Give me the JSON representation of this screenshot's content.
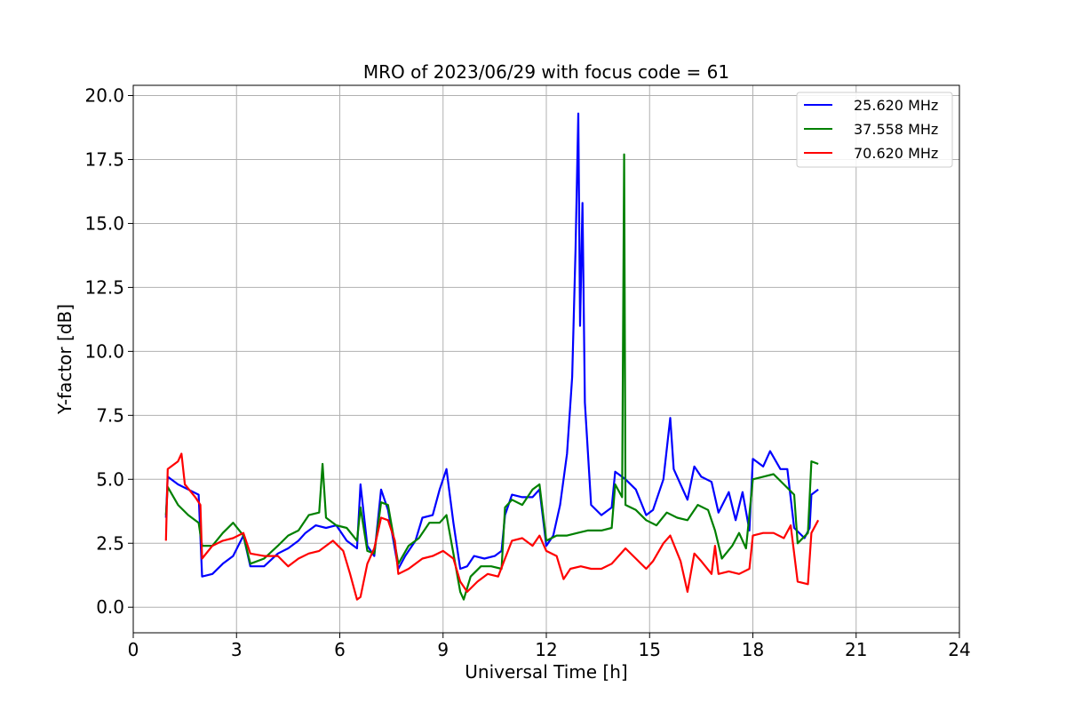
{
  "chart_data": {
    "type": "line",
    "title": "MRO of 2023/06/29 with focus code = 61",
    "xlabel": "Universal Time [h]",
    "ylabel": "Y-factor [dB]",
    "xlim": [
      0,
      24
    ],
    "ylim": [
      -1.0,
      20.4
    ],
    "xticks": [
      0,
      3,
      6,
      9,
      12,
      15,
      18,
      21,
      24
    ],
    "xtick_labels": [
      "0",
      "3",
      "6",
      "9",
      "12",
      "15",
      "18",
      "21",
      "24"
    ],
    "yticks": [
      0,
      2.5,
      5,
      7.5,
      10,
      12.5,
      15,
      17.5,
      20
    ],
    "ytick_labels": [
      "0.0",
      "2.5",
      "5.0",
      "7.5",
      "10.0",
      "12.5",
      "15.0",
      "17.5",
      "20.0"
    ],
    "grid": true,
    "legend_position": "top-right",
    "series": [
      {
        "name": "25.620 MHz",
        "color": "#0000ff",
        "points": [
          [
            0.95,
            3.5
          ],
          [
            1.0,
            5.1
          ],
          [
            1.3,
            4.8
          ],
          [
            1.6,
            4.6
          ],
          [
            1.9,
            4.4
          ],
          [
            2.0,
            1.2
          ],
          [
            2.3,
            1.3
          ],
          [
            2.6,
            1.7
          ],
          [
            2.9,
            2.0
          ],
          [
            3.2,
            2.8
          ],
          [
            3.4,
            1.6
          ],
          [
            3.8,
            1.6
          ],
          [
            4.2,
            2.1
          ],
          [
            4.5,
            2.3
          ],
          [
            4.8,
            2.6
          ],
          [
            5.0,
            2.9
          ],
          [
            5.3,
            3.2
          ],
          [
            5.6,
            3.1
          ],
          [
            5.9,
            3.2
          ],
          [
            6.2,
            2.6
          ],
          [
            6.5,
            2.3
          ],
          [
            6.6,
            4.8
          ],
          [
            6.8,
            2.4
          ],
          [
            7.0,
            2.0
          ],
          [
            7.2,
            4.6
          ],
          [
            7.4,
            3.8
          ],
          [
            7.7,
            1.5
          ],
          [
            7.9,
            2.0
          ],
          [
            8.2,
            2.6
          ],
          [
            8.4,
            3.5
          ],
          [
            8.7,
            3.6
          ],
          [
            8.9,
            4.6
          ],
          [
            9.1,
            5.4
          ],
          [
            9.3,
            3.3
          ],
          [
            9.5,
            1.5
          ],
          [
            9.7,
            1.6
          ],
          [
            9.9,
            2.0
          ],
          [
            10.2,
            1.9
          ],
          [
            10.5,
            2.0
          ],
          [
            10.7,
            2.2
          ],
          [
            10.8,
            3.6
          ],
          [
            11.0,
            4.4
          ],
          [
            11.3,
            4.3
          ],
          [
            11.6,
            4.3
          ],
          [
            11.8,
            4.6
          ],
          [
            12.0,
            2.4
          ],
          [
            12.2,
            2.8
          ],
          [
            12.4,
            4.0
          ],
          [
            12.6,
            6.0
          ],
          [
            12.75,
            9.0
          ],
          [
            12.85,
            14.0
          ],
          [
            12.93,
            19.3
          ],
          [
            12.98,
            11.0
          ],
          [
            13.05,
            15.8
          ],
          [
            13.12,
            8.0
          ],
          [
            13.3,
            4.0
          ],
          [
            13.6,
            3.6
          ],
          [
            13.9,
            3.9
          ],
          [
            14.0,
            5.3
          ],
          [
            14.3,
            5.0
          ],
          [
            14.6,
            4.6
          ],
          [
            14.9,
            3.6
          ],
          [
            15.1,
            3.8
          ],
          [
            15.4,
            5.0
          ],
          [
            15.6,
            7.4
          ],
          [
            15.7,
            5.4
          ],
          [
            15.9,
            4.8
          ],
          [
            16.1,
            4.2
          ],
          [
            16.3,
            5.5
          ],
          [
            16.5,
            5.1
          ],
          [
            16.8,
            4.9
          ],
          [
            17.0,
            3.7
          ],
          [
            17.3,
            4.5
          ],
          [
            17.5,
            3.4
          ],
          [
            17.7,
            4.5
          ],
          [
            17.9,
            3.0
          ],
          [
            18.0,
            5.8
          ],
          [
            18.3,
            5.5
          ],
          [
            18.5,
            6.1
          ],
          [
            18.8,
            5.4
          ],
          [
            19.0,
            5.4
          ],
          [
            19.2,
            3.1
          ],
          [
            19.5,
            2.7
          ],
          [
            19.65,
            3.1
          ],
          [
            19.7,
            4.4
          ],
          [
            19.9,
            4.6
          ]
        ]
      },
      {
        "name": "37.558 MHz",
        "color": "#008000",
        "points": [
          [
            0.95,
            3.6
          ],
          [
            1.0,
            4.7
          ],
          [
            1.3,
            4.0
          ],
          [
            1.6,
            3.6
          ],
          [
            1.9,
            3.3
          ],
          [
            2.0,
            2.4
          ],
          [
            2.3,
            2.4
          ],
          [
            2.6,
            2.9
          ],
          [
            2.9,
            3.3
          ],
          [
            3.2,
            2.8
          ],
          [
            3.4,
            1.7
          ],
          [
            3.8,
            1.9
          ],
          [
            4.2,
            2.4
          ],
          [
            4.5,
            2.8
          ],
          [
            4.8,
            3.0
          ],
          [
            5.1,
            3.6
          ],
          [
            5.4,
            3.7
          ],
          [
            5.5,
            5.6
          ],
          [
            5.6,
            3.5
          ],
          [
            5.9,
            3.2
          ],
          [
            6.2,
            3.1
          ],
          [
            6.5,
            2.6
          ],
          [
            6.6,
            3.9
          ],
          [
            6.8,
            2.2
          ],
          [
            7.0,
            2.1
          ],
          [
            7.2,
            4.1
          ],
          [
            7.4,
            4.0
          ],
          [
            7.7,
            1.7
          ],
          [
            8.0,
            2.4
          ],
          [
            8.3,
            2.7
          ],
          [
            8.6,
            3.3
          ],
          [
            8.9,
            3.3
          ],
          [
            9.1,
            3.6
          ],
          [
            9.3,
            2.1
          ],
          [
            9.5,
            0.6
          ],
          [
            9.6,
            0.3
          ],
          [
            9.8,
            1.2
          ],
          [
            10.1,
            1.6
          ],
          [
            10.4,
            1.6
          ],
          [
            10.7,
            1.5
          ],
          [
            10.8,
            3.9
          ],
          [
            11.0,
            4.2
          ],
          [
            11.3,
            4.0
          ],
          [
            11.6,
            4.6
          ],
          [
            11.8,
            4.8
          ],
          [
            12.0,
            2.6
          ],
          [
            12.3,
            2.8
          ],
          [
            12.6,
            2.8
          ],
          [
            12.9,
            2.9
          ],
          [
            13.2,
            3.0
          ],
          [
            13.6,
            3.0
          ],
          [
            13.9,
            3.1
          ],
          [
            14.0,
            4.8
          ],
          [
            14.2,
            4.3
          ],
          [
            14.26,
            17.7
          ],
          [
            14.3,
            4.0
          ],
          [
            14.6,
            3.8
          ],
          [
            14.9,
            3.4
          ],
          [
            15.2,
            3.2
          ],
          [
            15.5,
            3.7
          ],
          [
            15.8,
            3.5
          ],
          [
            16.1,
            3.4
          ],
          [
            16.4,
            4.0
          ],
          [
            16.7,
            3.8
          ],
          [
            16.9,
            3.0
          ],
          [
            17.1,
            1.9
          ],
          [
            17.4,
            2.4
          ],
          [
            17.6,
            2.9
          ],
          [
            17.8,
            2.3
          ],
          [
            18.0,
            5.0
          ],
          [
            18.3,
            5.1
          ],
          [
            18.6,
            5.2
          ],
          [
            18.9,
            4.8
          ],
          [
            19.2,
            4.4
          ],
          [
            19.3,
            2.5
          ],
          [
            19.6,
            2.9
          ],
          [
            19.7,
            5.7
          ],
          [
            19.9,
            5.6
          ]
        ]
      },
      {
        "name": "70.620 MHz",
        "color": "#ff0000",
        "points": [
          [
            0.95,
            2.6
          ],
          [
            1.0,
            5.4
          ],
          [
            1.3,
            5.7
          ],
          [
            1.4,
            6.0
          ],
          [
            1.5,
            4.8
          ],
          [
            1.8,
            4.3
          ],
          [
            1.95,
            4.0
          ],
          [
            2.0,
            1.9
          ],
          [
            2.3,
            2.4
          ],
          [
            2.6,
            2.6
          ],
          [
            2.9,
            2.7
          ],
          [
            3.2,
            2.9
          ],
          [
            3.4,
            2.1
          ],
          [
            3.8,
            2.0
          ],
          [
            4.2,
            2.0
          ],
          [
            4.5,
            1.6
          ],
          [
            4.8,
            1.9
          ],
          [
            5.1,
            2.1
          ],
          [
            5.4,
            2.2
          ],
          [
            5.8,
            2.6
          ],
          [
            6.1,
            2.2
          ],
          [
            6.3,
            1.3
          ],
          [
            6.5,
            0.3
          ],
          [
            6.6,
            0.4
          ],
          [
            6.8,
            1.7
          ],
          [
            7.0,
            2.3
          ],
          [
            7.2,
            3.5
          ],
          [
            7.4,
            3.4
          ],
          [
            7.6,
            2.6
          ],
          [
            7.7,
            1.3
          ],
          [
            8.0,
            1.5
          ],
          [
            8.4,
            1.9
          ],
          [
            8.7,
            2.0
          ],
          [
            9.0,
            2.2
          ],
          [
            9.3,
            1.9
          ],
          [
            9.5,
            1.0
          ],
          [
            9.7,
            0.6
          ],
          [
            10.0,
            1.0
          ],
          [
            10.3,
            1.3
          ],
          [
            10.6,
            1.2
          ],
          [
            10.8,
            1.9
          ],
          [
            11.0,
            2.6
          ],
          [
            11.3,
            2.7
          ],
          [
            11.6,
            2.4
          ],
          [
            11.8,
            2.8
          ],
          [
            12.0,
            2.2
          ],
          [
            12.3,
            2.0
          ],
          [
            12.5,
            1.1
          ],
          [
            12.7,
            1.5
          ],
          [
            13.0,
            1.6
          ],
          [
            13.3,
            1.5
          ],
          [
            13.6,
            1.5
          ],
          [
            13.9,
            1.7
          ],
          [
            14.1,
            2.0
          ],
          [
            14.3,
            2.3
          ],
          [
            14.6,
            1.9
          ],
          [
            14.9,
            1.5
          ],
          [
            15.1,
            1.8
          ],
          [
            15.4,
            2.5
          ],
          [
            15.6,
            2.8
          ],
          [
            15.9,
            1.8
          ],
          [
            16.1,
            0.6
          ],
          [
            16.3,
            2.1
          ],
          [
            16.5,
            1.8
          ],
          [
            16.8,
            1.3
          ],
          [
            16.9,
            2.4
          ],
          [
            17.0,
            1.3
          ],
          [
            17.3,
            1.4
          ],
          [
            17.6,
            1.3
          ],
          [
            17.9,
            1.5
          ],
          [
            18.0,
            2.8
          ],
          [
            18.3,
            2.9
          ],
          [
            18.6,
            2.9
          ],
          [
            18.9,
            2.7
          ],
          [
            19.1,
            3.2
          ],
          [
            19.3,
            1.0
          ],
          [
            19.6,
            0.9
          ],
          [
            19.7,
            2.9
          ],
          [
            19.9,
            3.4
          ]
        ]
      }
    ]
  }
}
